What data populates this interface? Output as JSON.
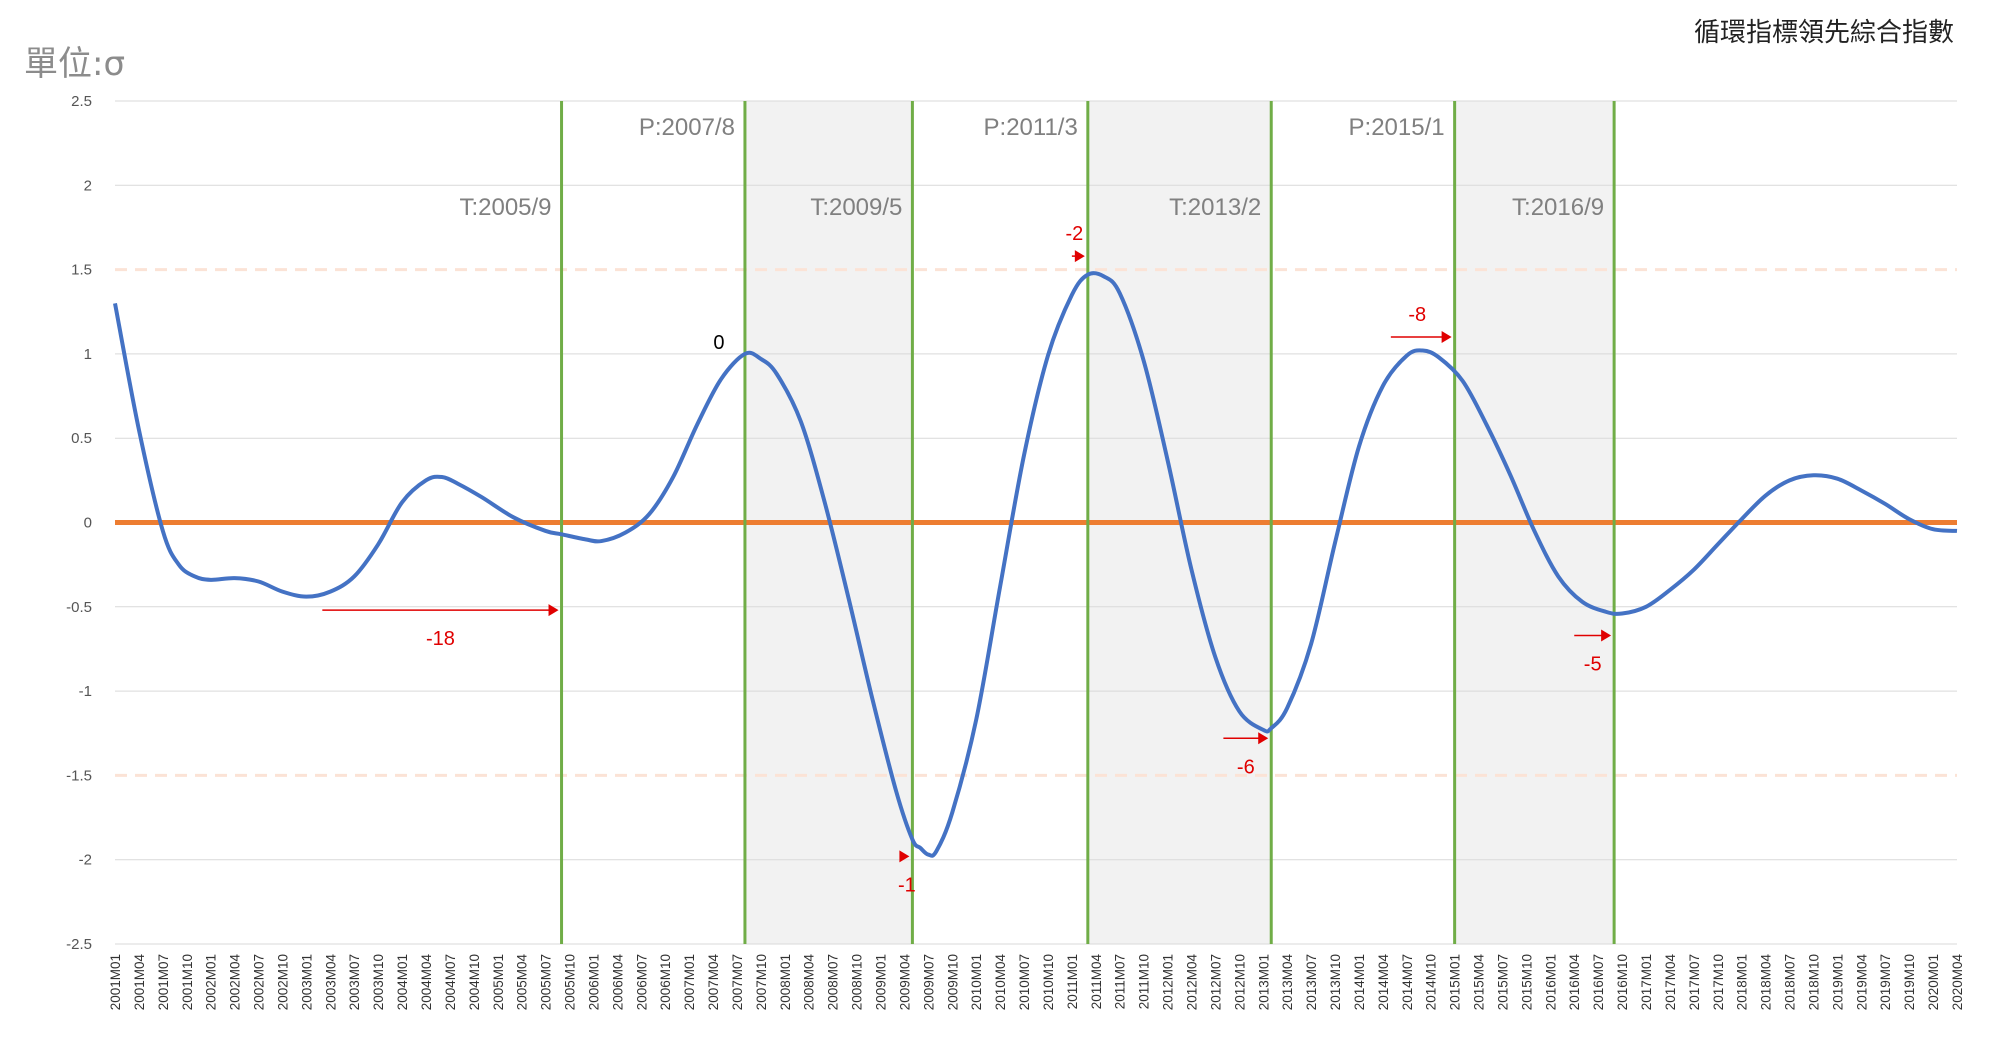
{
  "unit_label": "單位:σ",
  "chart_data": {
    "type": "line",
    "title": "循環指標領先綜合指數",
    "ylim": [
      -2.5,
      2.5
    ],
    "yticks": [
      "2.5",
      "2",
      "1.5",
      "1",
      "0.5",
      "0",
      "-0.5",
      "-1",
      "-1.5",
      "-2",
      "-2.5"
    ],
    "reference_lines": [
      {
        "y": 0,
        "color": "#ed7d31",
        "style": "solid"
      },
      {
        "y": 1.5,
        "color": "#fbe3d6",
        "style": "dashed"
      },
      {
        "y": -1.5,
        "color": "#fbe3d6",
        "style": "dashed"
      }
    ],
    "shaded_periods": [
      [
        "2007-08",
        "2009-05"
      ],
      [
        "2011-03",
        "2013-02"
      ],
      [
        "2015-01",
        "2016-09"
      ]
    ],
    "events": [
      {
        "date": "2005-09",
        "label": "T:2005/9",
        "label_level": "low"
      },
      {
        "date": "2007-08",
        "label": "P:2007/8",
        "label_level": "high"
      },
      {
        "date": "2009-05",
        "label": "T:2009/5",
        "label_level": "low"
      },
      {
        "date": "2011-03",
        "label": "P:2011/3",
        "label_level": "high"
      },
      {
        "date": "2013-02",
        "label": "T:2013/2",
        "label_level": "low"
      },
      {
        "date": "2015-01",
        "label": "P:2015/1",
        "label_level": "high"
      },
      {
        "date": "2016-09",
        "label": "T:2016/9",
        "label_level": "low"
      }
    ],
    "lead_annotations": [
      {
        "label": "-18",
        "from": "2003-03",
        "to": "2005-09",
        "y": -0.52
      },
      {
        "label": "0",
        "at": "2007-08",
        "y": 1.0
      },
      {
        "label": "-1",
        "from": "2009-04",
        "to": "2009-05",
        "y": -1.98
      },
      {
        "label": "-2",
        "from": "2011-01",
        "to": "2011-03",
        "y": 1.58
      },
      {
        "label": "-6",
        "from": "2012-08",
        "to": "2013-02",
        "y": -1.28
      },
      {
        "label": "-8",
        "from": "2014-05",
        "to": "2015-01",
        "y": 1.1
      },
      {
        "label": "-5",
        "from": "2016-04",
        "to": "2016-09",
        "y": -0.67
      }
    ],
    "x_categories": [
      "2001M01",
      "2001M04",
      "2001M07",
      "2001M10",
      "2002M01",
      "2002M04",
      "2002M07",
      "2002M10",
      "2003M01",
      "2003M04",
      "2003M07",
      "2003M10",
      "2004M01",
      "2004M04",
      "2004M07",
      "2004M10",
      "2005M01",
      "2005M04",
      "2005M07",
      "2005M10",
      "2006M01",
      "2006M04",
      "2006M07",
      "2006M10",
      "2007M01",
      "2007M04",
      "2007M07",
      "2007M10",
      "2008M01",
      "2008M04",
      "2008M07",
      "2008M10",
      "2009M01",
      "2009M04",
      "2009M07",
      "2009M10",
      "2010M01",
      "2010M04",
      "2010M07",
      "2010M10",
      "2011M01",
      "2011M04",
      "2011M07",
      "2011M10",
      "2012M01",
      "2012M04",
      "2012M07",
      "2012M10",
      "2013M01",
      "2013M04",
      "2013M07",
      "2013M10",
      "2014M01",
      "2014M04",
      "2014M07",
      "2014M10",
      "2015M01",
      "2015M04",
      "2015M07",
      "2015M10",
      "2016M01",
      "2016M04",
      "2016M07",
      "2016M10",
      "2017M01",
      "2017M04",
      "2017M07",
      "2017M10",
      "2018M01",
      "2018M04",
      "2018M07",
      "2018M10",
      "2019M01",
      "2019M04",
      "2019M07",
      "2019M10",
      "2020M01",
      "2020M04"
    ],
    "series": [
      {
        "color": "#4472c4",
        "points": [
          [
            "2001-01",
            1.3
          ],
          [
            "2001-04",
            0.55
          ],
          [
            "2001-07",
            -0.05
          ],
          [
            "2001-09",
            -0.25
          ],
          [
            "2001-11",
            -0.32
          ],
          [
            "2002-01",
            -0.34
          ],
          [
            "2002-04",
            -0.33
          ],
          [
            "2002-07",
            -0.35
          ],
          [
            "2002-10",
            -0.41
          ],
          [
            "2003-01",
            -0.44
          ],
          [
            "2003-04",
            -0.41
          ],
          [
            "2003-07",
            -0.32
          ],
          [
            "2003-10",
            -0.13
          ],
          [
            "2004-01",
            0.12
          ],
          [
            "2004-04",
            0.25
          ],
          [
            "2004-06",
            0.27
          ],
          [
            "2004-08",
            0.23
          ],
          [
            "2004-11",
            0.15
          ],
          [
            "2005-03",
            0.03
          ],
          [
            "2005-07",
            -0.05
          ],
          [
            "2005-09",
            -0.07
          ],
          [
            "2005-12",
            -0.1
          ],
          [
            "2006-02",
            -0.11
          ],
          [
            "2006-05",
            -0.06
          ],
          [
            "2006-08",
            0.05
          ],
          [
            "2006-11",
            0.27
          ],
          [
            "2007-02",
            0.58
          ],
          [
            "2007-05",
            0.85
          ],
          [
            "2007-08",
            1.0
          ],
          [
            "2007-10",
            0.97
          ],
          [
            "2007-12",
            0.88
          ],
          [
            "2008-03",
            0.6
          ],
          [
            "2008-06",
            0.12
          ],
          [
            "2008-09",
            -0.45
          ],
          [
            "2008-12",
            -1.05
          ],
          [
            "2009-03",
            -1.6
          ],
          [
            "2009-05",
            -1.88
          ],
          [
            "2009-06",
            -1.93
          ],
          [
            "2009-07",
            -1.97
          ],
          [
            "2009-08",
            -1.95
          ],
          [
            "2009-10",
            -1.72
          ],
          [
            "2010-01",
            -1.17
          ],
          [
            "2010-04",
            -0.38
          ],
          [
            "2010-07",
            0.4
          ],
          [
            "2010-10",
            0.99
          ],
          [
            "2011-01",
            1.35
          ],
          [
            "2011-03",
            1.47
          ],
          [
            "2011-05",
            1.46
          ],
          [
            "2011-07",
            1.36
          ],
          [
            "2011-10",
            0.96
          ],
          [
            "2012-01",
            0.37
          ],
          [
            "2012-04",
            -0.28
          ],
          [
            "2012-07",
            -0.8
          ],
          [
            "2012-10",
            -1.12
          ],
          [
            "2013-01",
            -1.23
          ],
          [
            "2013-02",
            -1.22
          ],
          [
            "2013-04",
            -1.1
          ],
          [
            "2013-07",
            -0.72
          ],
          [
            "2013-10",
            -0.12
          ],
          [
            "2014-01",
            0.45
          ],
          [
            "2014-04",
            0.81
          ],
          [
            "2014-07",
            0.99
          ],
          [
            "2014-09",
            1.02
          ],
          [
            "2014-11",
            0.98
          ],
          [
            "2015-02",
            0.84
          ],
          [
            "2015-05",
            0.58
          ],
          [
            "2015-08",
            0.28
          ],
          [
            "2015-11",
            -0.05
          ],
          [
            "2016-02",
            -0.32
          ],
          [
            "2016-05",
            -0.47
          ],
          [
            "2016-08",
            -0.53
          ],
          [
            "2016-10",
            -0.54
          ],
          [
            "2017-01",
            -0.5
          ],
          [
            "2017-04",
            -0.4
          ],
          [
            "2017-07",
            -0.28
          ],
          [
            "2017-10",
            -0.13
          ],
          [
            "2018-01",
            0.02
          ],
          [
            "2018-04",
            0.16
          ],
          [
            "2018-07",
            0.25
          ],
          [
            "2018-10",
            0.28
          ],
          [
            "2019-01",
            0.26
          ],
          [
            "2019-04",
            0.19
          ],
          [
            "2019-07",
            0.11
          ],
          [
            "2019-10",
            0.02
          ],
          [
            "2020-01",
            -0.04
          ],
          [
            "2020-04",
            -0.05
          ]
        ]
      }
    ]
  }
}
